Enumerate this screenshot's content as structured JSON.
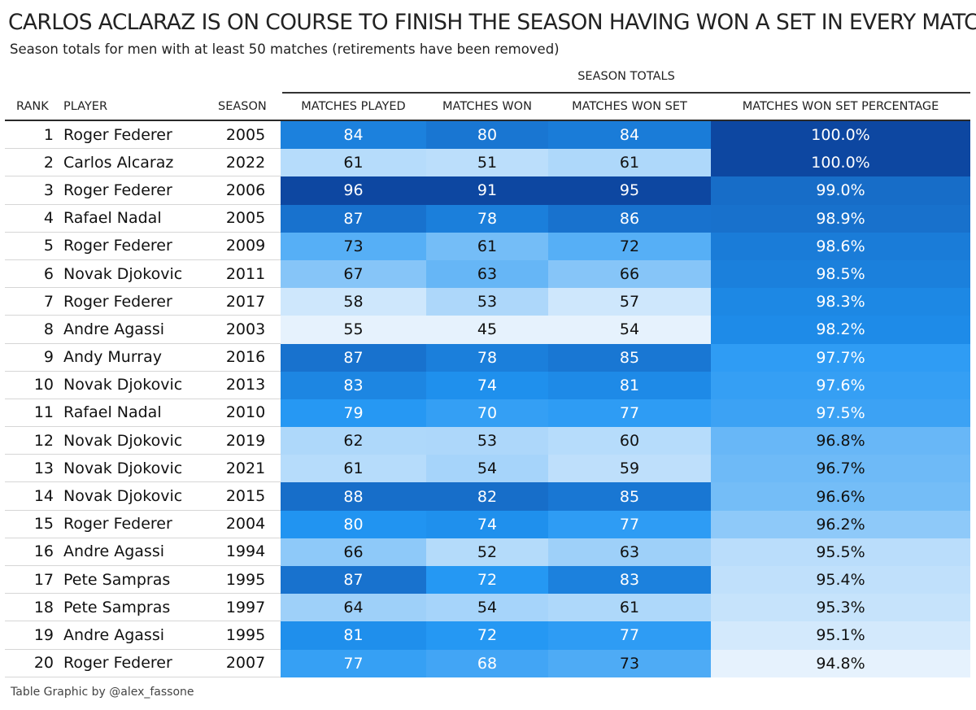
{
  "header": {
    "title": "CARLOS ACLARAZ IS ON COURSE TO FINISH THE SEASON HAVING WON A SET IN EVERY MATCH",
    "subtitle": "Season totals for men with at least 50 matches (retirements have been removed)",
    "spanner": "SEASON TOTALS"
  },
  "columns": {
    "rank": "RANK",
    "player": "PLAYER",
    "season": "SEASON",
    "matches_played": "MATCHES PLAYED",
    "matches_won": "MATCHES WON",
    "matches_won_set": "MATCHES WON SET",
    "pct": "MATCHES WON SET PERCENTAGE"
  },
  "footer": {
    "credit": "Table Graphic by @alex_fassone"
  },
  "colors": {
    "scale_light": "#e6f2fd",
    "scale_mid": "#2196f3",
    "scale_dark": "#0d47a1"
  },
  "chart_data": {
    "type": "table",
    "rows": [
      {
        "rank": "1",
        "player": "Roger Federer",
        "season": "2005",
        "matches_played": "84",
        "matches_won": "80",
        "matches_won_set": "84",
        "pct": "100.0%"
      },
      {
        "rank": "2",
        "player": "Carlos Alcaraz",
        "season": "2022",
        "matches_played": "61",
        "matches_won": "51",
        "matches_won_set": "61",
        "pct": "100.0%"
      },
      {
        "rank": "3",
        "player": "Roger Federer",
        "season": "2006",
        "matches_played": "96",
        "matches_won": "91",
        "matches_won_set": "95",
        "pct": "99.0%"
      },
      {
        "rank": "4",
        "player": "Rafael Nadal",
        "season": "2005",
        "matches_played": "87",
        "matches_won": "78",
        "matches_won_set": "86",
        "pct": "98.9%"
      },
      {
        "rank": "5",
        "player": "Roger Federer",
        "season": "2009",
        "matches_played": "73",
        "matches_won": "61",
        "matches_won_set": "72",
        "pct": "98.6%"
      },
      {
        "rank": "6",
        "player": "Novak Djokovic",
        "season": "2011",
        "matches_played": "67",
        "matches_won": "63",
        "matches_won_set": "66",
        "pct": "98.5%"
      },
      {
        "rank": "7",
        "player": "Roger Federer",
        "season": "2017",
        "matches_played": "58",
        "matches_won": "53",
        "matches_won_set": "57",
        "pct": "98.3%"
      },
      {
        "rank": "8",
        "player": "Andre Agassi",
        "season": "2003",
        "matches_played": "55",
        "matches_won": "45",
        "matches_won_set": "54",
        "pct": "98.2%"
      },
      {
        "rank": "9",
        "player": "Andy Murray",
        "season": "2016",
        "matches_played": "87",
        "matches_won": "78",
        "matches_won_set": "85",
        "pct": "97.7%"
      },
      {
        "rank": "10",
        "player": "Novak Djokovic",
        "season": "2013",
        "matches_played": "83",
        "matches_won": "74",
        "matches_won_set": "81",
        "pct": "97.6%"
      },
      {
        "rank": "11",
        "player": "Rafael Nadal",
        "season": "2010",
        "matches_played": "79",
        "matches_won": "70",
        "matches_won_set": "77",
        "pct": "97.5%"
      },
      {
        "rank": "12",
        "player": "Novak Djokovic",
        "season": "2019",
        "matches_played": "62",
        "matches_won": "53",
        "matches_won_set": "60",
        "pct": "96.8%"
      },
      {
        "rank": "13",
        "player": "Novak Djokovic",
        "season": "2021",
        "matches_played": "61",
        "matches_won": "54",
        "matches_won_set": "59",
        "pct": "96.7%"
      },
      {
        "rank": "14",
        "player": "Novak Djokovic",
        "season": "2015",
        "matches_played": "88",
        "matches_won": "82",
        "matches_won_set": "85",
        "pct": "96.6%"
      },
      {
        "rank": "15",
        "player": "Roger Federer",
        "season": "2004",
        "matches_played": "80",
        "matches_won": "74",
        "matches_won_set": "77",
        "pct": "96.2%"
      },
      {
        "rank": "16",
        "player": "Andre Agassi",
        "season": "1994",
        "matches_played": "66",
        "matches_won": "52",
        "matches_won_set": "63",
        "pct": "95.5%"
      },
      {
        "rank": "17",
        "player": "Pete Sampras",
        "season": "1995",
        "matches_played": "87",
        "matches_won": "72",
        "matches_won_set": "83",
        "pct": "95.4%"
      },
      {
        "rank": "18",
        "player": "Pete Sampras",
        "season": "1997",
        "matches_played": "64",
        "matches_won": "54",
        "matches_won_set": "61",
        "pct": "95.3%"
      },
      {
        "rank": "19",
        "player": "Andre Agassi",
        "season": "1995",
        "matches_played": "81",
        "matches_won": "72",
        "matches_won_set": "77",
        "pct": "95.1%"
      },
      {
        "rank": "20",
        "player": "Roger Federer",
        "season": "2007",
        "matches_played": "77",
        "matches_won": "68",
        "matches_won_set": "73",
        "pct": "94.8%"
      }
    ]
  }
}
